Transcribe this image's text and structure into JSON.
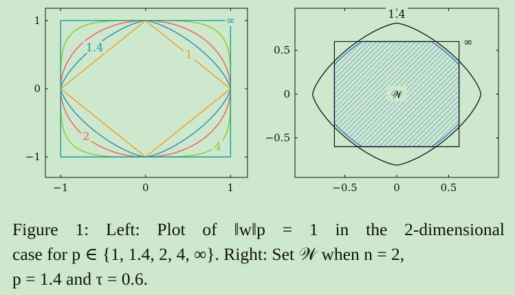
{
  "chart_data": [
    {
      "type": "line",
      "panel": "left",
      "xlim": [
        -1.18,
        1.2
      ],
      "ylim": [
        -1.3,
        1.18
      ],
      "xticks": [
        -1,
        0,
        1
      ],
      "yticks": [
        -1,
        0,
        1
      ],
      "xtick_labels": [
        "−1",
        "0",
        "1"
      ],
      "ytick_labels": [
        "−1",
        "0",
        "1"
      ],
      "grid": false,
      "series": [
        {
          "name": "1",
          "p": 1,
          "color": "#f39a1e"
        },
        {
          "name": "1.4",
          "p": 1.4,
          "color": "#2a8ab0"
        },
        {
          "name": "2",
          "p": 2,
          "color": "#ee5a5a"
        },
        {
          "name": "4",
          "p": 4,
          "color": "#90c820"
        },
        {
          "name": "∞",
          "p": "inf",
          "color": "#1a9aa0"
        }
      ]
    },
    {
      "type": "area",
      "panel": "right",
      "xlim": [
        -0.98,
        0.98
      ],
      "ylim": [
        -0.95,
        0.98
      ],
      "xticks": [
        -0.5,
        0,
        0.5
      ],
      "yticks": [
        -0.5,
        0,
        0.5
      ],
      "xtick_labels": [
        "−0.5",
        "0",
        "0.5"
      ],
      "ytick_labels": [
        "−0.5",
        "0",
        "0.5"
      ],
      "grid": false,
      "p": 1.4,
      "tau": 0.6,
      "curve_labels": [
        "1.4",
        "∞"
      ],
      "region_label": "𝒲",
      "region_color": "#3f82c4",
      "box_color": "#111111"
    }
  ],
  "caption": {
    "line1_words": [
      "Figure",
      "1:",
      "Left:",
      "Plot",
      "of",
      "‖w‖p",
      "=",
      "1",
      "in",
      "the",
      "2-dimensional"
    ],
    "line2": "case for p ∈ {1, 1.4, 2, 4, ∞}. Right: Set 𝒲 when n = 2,",
    "line3": "p = 1.4 and τ = 0.6."
  }
}
